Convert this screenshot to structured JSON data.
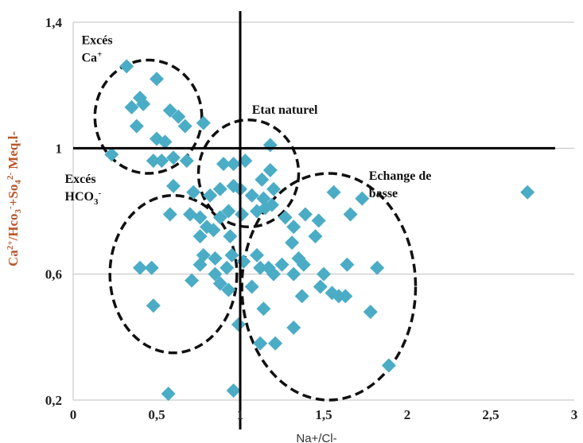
{
  "chart_data": {
    "type": "scatter",
    "xlabel": "Na+/Cl-",
    "ylabel_parts": [
      "Ca",
      "2+",
      "/Hco",
      "3",
      "-",
      "+So",
      "4",
      "2-",
      " Meq.l-"
    ],
    "xlim": [
      0,
      3
    ],
    "ylim": [
      0.2,
      1.4
    ],
    "x_ticks": [
      {
        "value": 0,
        "label": "0"
      },
      {
        "value": 0.5,
        "label": "0,5"
      },
      {
        "value": 1,
        "label": "1"
      },
      {
        "value": 1.5,
        "label": "1,5"
      },
      {
        "value": 2,
        "label": "2"
      },
      {
        "value": 2.5,
        "label": "2,5"
      },
      {
        "value": 3,
        "label": "3"
      }
    ],
    "y_ticks": [
      {
        "value": 0.2,
        "label": "0,2"
      },
      {
        "value": 0.6,
        "label": "0,6"
      },
      {
        "value": 1,
        "label": "1"
      },
      {
        "value": 1.4,
        "label": "1,4"
      }
    ],
    "grid": "horizontal",
    "marker_color": "#4bacc6",
    "reference_lines": [
      {
        "orientation": "vertical",
        "x": 1
      },
      {
        "orientation": "horizontal",
        "y": 1
      }
    ],
    "annotations": [
      {
        "lines": [
          "Excés",
          "Ca+"
        ],
        "at": [
          0.05,
          1.33
        ]
      },
      {
        "lines": [
          "Etat naturel"
        ],
        "at": [
          1.07,
          1.11
        ]
      },
      {
        "lines": [
          "Excés",
          "HCO3-"
        ],
        "at": [
          -0.05,
          0.89
        ]
      },
      {
        "lines": [
          "Echange de",
          "basse"
        ],
        "at": [
          1.77,
          0.9
        ]
      }
    ],
    "regions": [
      {
        "name": "Excés Ca+",
        "cx": 0.45,
        "cy": 1.1,
        "rx": 0.32,
        "ry": 0.18
      },
      {
        "name": "Etat naturel",
        "cx": 1.05,
        "cy": 0.92,
        "rx": 0.3,
        "ry": 0.17
      },
      {
        "name": "Excés HCO3-",
        "cx": 0.6,
        "cy": 0.6,
        "rx": 0.38,
        "ry": 0.25
      },
      {
        "name": "Echange de basse",
        "cx": 1.53,
        "cy": 0.56,
        "rx": 0.52,
        "ry": 0.36
      }
    ],
    "points": [
      [
        0.32,
        1.26
      ],
      [
        0.5,
        1.22
      ],
      [
        0.35,
        1.13
      ],
      [
        0.4,
        1.16
      ],
      [
        0.42,
        1.14
      ],
      [
        0.58,
        1.12
      ],
      [
        0.63,
        1.1
      ],
      [
        0.67,
        1.07
      ],
      [
        0.78,
        1.08
      ],
      [
        0.38,
        1.07
      ],
      [
        0.5,
        1.03
      ],
      [
        0.55,
        1.02
      ],
      [
        0.23,
        0.98
      ],
      [
        0.48,
        0.96
      ],
      [
        0.53,
        0.96
      ],
      [
        0.6,
        0.97
      ],
      [
        0.68,
        0.96
      ],
      [
        0.9,
        0.95
      ],
      [
        0.96,
        0.95
      ],
      [
        1.03,
        0.96
      ],
      [
        1.18,
        1.01
      ],
      [
        1.18,
        0.93
      ],
      [
        1.13,
        0.9
      ],
      [
        1.2,
        0.87
      ],
      [
        0.6,
        0.88
      ],
      [
        0.72,
        0.86
      ],
      [
        0.82,
        0.85
      ],
      [
        0.88,
        0.87
      ],
      [
        0.96,
        0.88
      ],
      [
        1.0,
        0.87
      ],
      [
        1.07,
        0.85
      ],
      [
        1.14,
        0.84
      ],
      [
        1.19,
        0.82
      ],
      [
        0.58,
        0.79
      ],
      [
        0.7,
        0.79
      ],
      [
        0.76,
        0.78
      ],
      [
        0.8,
        0.75
      ],
      [
        0.88,
        0.78
      ],
      [
        0.93,
        0.8
      ],
      [
        1.01,
        0.79
      ],
      [
        1.1,
        0.8
      ],
      [
        1.15,
        0.81
      ],
      [
        1.27,
        0.78
      ],
      [
        1.32,
        0.75
      ],
      [
        1.39,
        0.79
      ],
      [
        1.47,
        0.77
      ],
      [
        1.56,
        0.86
      ],
      [
        1.66,
        0.79
      ],
      [
        1.73,
        0.84
      ],
      [
        2.72,
        0.86
      ],
      [
        0.76,
        0.72
      ],
      [
        0.84,
        0.74
      ],
      [
        0.94,
        0.72
      ],
      [
        1.31,
        0.7
      ],
      [
        1.45,
        0.72
      ],
      [
        0.78,
        0.66
      ],
      [
        0.85,
        0.65
      ],
      [
        0.95,
        0.66
      ],
      [
        1.02,
        0.64
      ],
      [
        1.1,
        0.66
      ],
      [
        1.17,
        0.62
      ],
      [
        1.25,
        0.63
      ],
      [
        1.35,
        0.65
      ],
      [
        1.38,
        0.63
      ],
      [
        0.4,
        0.62
      ],
      [
        0.47,
        0.62
      ],
      [
        0.76,
        0.63
      ],
      [
        0.85,
        0.6
      ],
      [
        0.92,
        0.62
      ],
      [
        1.12,
        0.62
      ],
      [
        1.2,
        0.6
      ],
      [
        1.32,
        0.6
      ],
      [
        1.5,
        0.6
      ],
      [
        1.64,
        0.63
      ],
      [
        1.82,
        0.62
      ],
      [
        0.71,
        0.58
      ],
      [
        0.88,
        0.57
      ],
      [
        0.93,
        0.55
      ],
      [
        1.07,
        0.56
      ],
      [
        1.55,
        0.54
      ],
      [
        1.59,
        0.53
      ],
      [
        1.63,
        0.53
      ],
      [
        1.48,
        0.56
      ],
      [
        1.37,
        0.53
      ],
      [
        0.48,
        0.5
      ],
      [
        1.14,
        0.49
      ],
      [
        1.78,
        0.48
      ],
      [
        0.99,
        0.44
      ],
      [
        1.32,
        0.43
      ],
      [
        1.12,
        0.38
      ],
      [
        1.21,
        0.38
      ],
      [
        1.89,
        0.31
      ],
      [
        0.57,
        0.22
      ],
      [
        0.96,
        0.23
      ]
    ]
  }
}
